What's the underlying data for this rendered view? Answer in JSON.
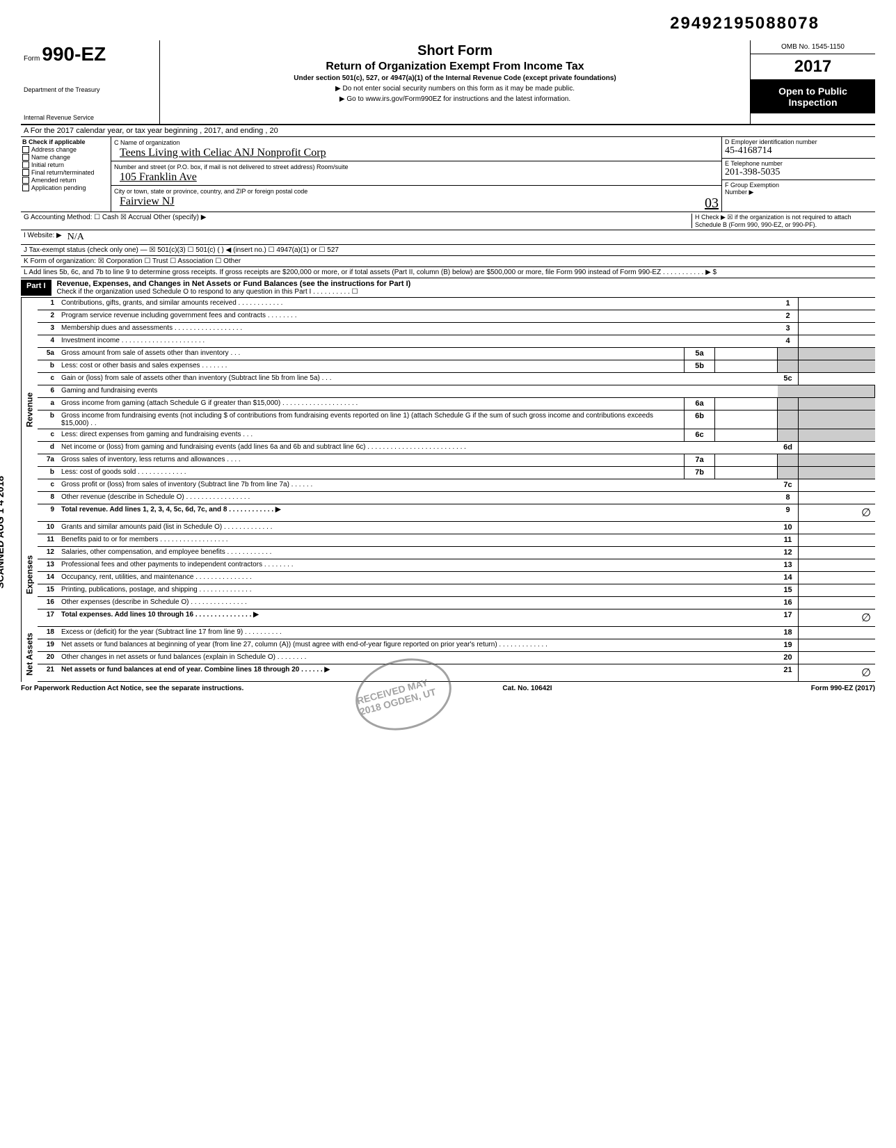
{
  "header_code": "29492195088078",
  "form": {
    "number": "990-EZ",
    "word": "Form",
    "dept1": "Department of the Treasury",
    "dept2": "Internal Revenue Service",
    "short_form": "Short Form",
    "return_title": "Return of Organization Exempt From Income Tax",
    "under_section": "Under section 501(c), 527, or 4947(a)(1) of the Internal Revenue Code (except private foundations)",
    "notice1": "▶ Do not enter social security numbers on this form as it may be made public.",
    "notice2": "▶ Go to www.irs.gov/Form990EZ for instructions and the latest information.",
    "omb": "OMB No. 1545-1150",
    "year": "2017",
    "open_public1": "Open to Public",
    "open_public2": "Inspection"
  },
  "row_a": "A  For the 2017 calendar year, or tax year beginning                                                    , 2017, and ending                                    , 20",
  "section_b": {
    "header": "B  Check if applicable",
    "items": [
      "Address change",
      "Name change",
      "Initial return",
      "Final return/terminated",
      "Amended return",
      "Application pending"
    ],
    "c_label": "C  Name of organization",
    "c_value": "Teens Living with Celiac ANJ Nonprofit Corp",
    "street_label": "Number and street (or P.O. box, if mail is not delivered to street address)        Room/suite",
    "street_value": "105 Franklin Ave",
    "city_label": "City or town, state or province, country, and ZIP or foreign postal code",
    "city_value": "Fairview   NJ",
    "city_zip": "03",
    "d_label": "D Employer identification number",
    "d_value": "45-4168714",
    "e_label": "E Telephone number",
    "e_value": "201-398-5035",
    "f_label": "F Group Exemption",
    "f_label2": "Number ▶"
  },
  "row_g": "G  Accounting Method:     ☐ Cash     ☒ Accrual     Other (specify) ▶",
  "row_h": "H  Check ▶ ☒ if the organization is not required to attach Schedule B (Form 990, 990-EZ, or 990-PF).",
  "row_i": "I  Website: ▶",
  "row_i_val": "N/A",
  "row_j": "J  Tax-exempt status (check only one) — ☒ 501(c)(3)    ☐ 501(c) (       ) ◀ (insert no.) ☐ 4947(a)(1) or   ☐ 527",
  "row_k": "K  Form of organization:  ☒ Corporation      ☐ Trust           ☐ Association      ☐ Other",
  "row_l": "L  Add lines 5b, 6c, and 7b to line 9 to determine gross receipts. If gross receipts are $200,000 or more, or if total assets (Part II, column (B) below) are $500,000 or more, file Form 990 instead of Form 990-EZ  .  .  .  .  .  .  .  .  .  .  .  ▶  $",
  "part1": {
    "label": "Part I",
    "title": "Revenue, Expenses, and Changes in Net Assets or Fund Balances (see the instructions for Part I)",
    "check": "Check if the organization used Schedule O to respond to any question in this Part I  .  .  .  .  .  .  .  .  .  .  ☐"
  },
  "revenue_label": "Revenue",
  "expenses_label": "Expenses",
  "netassets_label": "Net Assets",
  "lines": [
    {
      "num": "1",
      "text": "Contributions, gifts, grants, and similar amounts received .  .  .  .  .  .  .  .  .  .  .  .",
      "end": "1"
    },
    {
      "num": "2",
      "text": "Program service revenue including government fees and contracts  .  .  .  .  .  .  .  .",
      "end": "2"
    },
    {
      "num": "3",
      "text": "Membership dues and assessments .  .  .  .  .  .  .  .  .  .  .  .  .  .  .  .  .  .",
      "end": "3"
    },
    {
      "num": "4",
      "text": "Investment income  .  .  .  .  .  .  .  .  .  .  .  .  .  .  .  .  .  .  .  .  .  .",
      "end": "4"
    },
    {
      "num": "5a",
      "text": "Gross amount from sale of assets other than inventory  .  .  .",
      "mid": "5a"
    },
    {
      "num": "b",
      "text": "Less: cost or other basis and sales expenses .  .  .  .  .  .  .",
      "mid": "5b"
    },
    {
      "num": "c",
      "text": "Gain or (loss) from sale of assets other than inventory (Subtract line 5b from line 5a) .  .  .",
      "end": "5c"
    },
    {
      "num": "6",
      "text": "Gaming and fundraising events"
    },
    {
      "num": "a",
      "text": "Gross income from gaming (attach Schedule G if greater than $15,000) .  .  .  .  .  .  .  .  .  .  .  .  .  .  .  .  .  .  .  .",
      "mid": "6a"
    },
    {
      "num": "b",
      "text": "Gross income from fundraising events (not including $                   of contributions from fundraising events reported on line 1) (attach Schedule G if the sum of such gross income and contributions exceeds $15,000) .  .",
      "mid": "6b"
    },
    {
      "num": "c",
      "text": "Less: direct expenses from gaming and fundraising events  .  .  .",
      "mid": "6c"
    },
    {
      "num": "d",
      "text": "Net income or (loss) from gaming and fundraising events (add lines 6a and 6b and subtract line 6c)  .  .  .  .  .  .  .  .  .  .  .  .  .  .  .  .  .  .  .  .  .  .  .  .  .  .",
      "end": "6d"
    },
    {
      "num": "7a",
      "text": "Gross sales of inventory, less returns and allowances  .  .  .  .",
      "mid": "7a"
    },
    {
      "num": "b",
      "text": "Less: cost of goods sold  .  .  .  .  .  .  .  .  .  .  .  .  .",
      "mid": "7b"
    },
    {
      "num": "c",
      "text": "Gross profit or (loss) from sales of inventory (Subtract line 7b from line 7a)  .  .  .  .  .  .",
      "end": "7c"
    },
    {
      "num": "8",
      "text": "Other revenue (describe in Schedule O) .  .  .  .  .  .  .  .  .  .  .  .  .  .  .  .  .",
      "end": "8"
    },
    {
      "num": "9",
      "text": "Total revenue. Add lines 1, 2, 3, 4, 5c, 6d, 7c, and 8  .  .  .  .  .  .  .  .  .  .  .  .  ▶",
      "end": "9",
      "val": "∅",
      "bold": true
    }
  ],
  "exp_lines": [
    {
      "num": "10",
      "text": "Grants and similar amounts paid (list in Schedule O)  .  .  .  .  .  .  .  .  .  .  .  .  .",
      "end": "10"
    },
    {
      "num": "11",
      "text": "Benefits paid to or for members  .  .  .  .  .  .  .  .  .  .  .  .  .  .  .  .  .  .",
      "end": "11"
    },
    {
      "num": "12",
      "text": "Salaries, other compensation, and employee benefits  .  .  .  .  .  .  .  .  .  .  .  .",
      "end": "12"
    },
    {
      "num": "13",
      "text": "Professional fees and other payments to independent contractors  .  .  .  .  .  .  .  .",
      "end": "13"
    },
    {
      "num": "14",
      "text": "Occupancy, rent, utilities, and maintenance  .  .  .  .  .  .  .  .  .  .  .  .  .  .  .",
      "end": "14"
    },
    {
      "num": "15",
      "text": "Printing, publications, postage, and shipping  .  .  .  .  .  .  .  .  .  .  .  .  .  .",
      "end": "15"
    },
    {
      "num": "16",
      "text": "Other expenses (describe in Schedule O)  .  .  .  .  .  .  .  .  .  .  .  .  .  .  .",
      "end": "16"
    },
    {
      "num": "17",
      "text": "Total expenses. Add lines 10 through 16  .  .  .  .  .  .  .  .  .  .  .  .  .  .  .  ▶",
      "end": "17",
      "val": "∅",
      "bold": true
    }
  ],
  "na_lines": [
    {
      "num": "18",
      "text": "Excess or (deficit) for the year (Subtract line 17 from line 9)  .  .  .  .  .  .  .  .  .  .",
      "end": "18"
    },
    {
      "num": "19",
      "text": "Net assets or fund balances at beginning of year (from line 27, column (A)) (must agree with end-of-year figure reported on prior year's return)  .  .  .  .  .  .  .  .  .  .  .  .  .",
      "end": "19"
    },
    {
      "num": "20",
      "text": "Other changes in net assets or fund balances (explain in Schedule O) .  .  .  .  .  .  .  .",
      "end": "20"
    },
    {
      "num": "21",
      "text": "Net assets or fund balances at end of year. Combine lines 18 through 20  .  .  .  .  .  .  ▶",
      "end": "21",
      "val": "∅",
      "bold": true
    }
  ],
  "footer": {
    "left": "For Paperwork Reduction Act Notice, see the separate instructions.",
    "mid": "Cat. No. 10642I",
    "right": "Form 990-EZ (2017)"
  },
  "scanned": "SCANNED AUG 1 4 2018",
  "stamp": "RECEIVED MAY 2018 OGDEN, UT"
}
